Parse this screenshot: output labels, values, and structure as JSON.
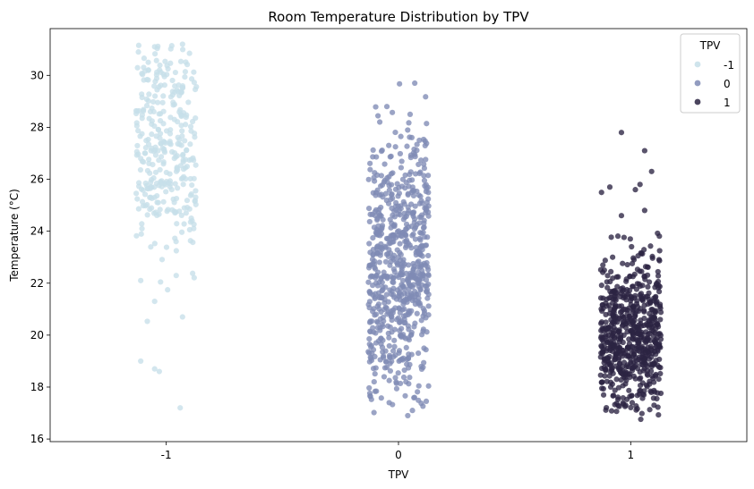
{
  "chart_data": {
    "type": "scatter",
    "subtype": "strip",
    "title": "Room Temperature Distribution by TPV",
    "xlabel": "TPV",
    "ylabel": "Temperature (°C)",
    "categories": [
      "-1",
      "0",
      "1"
    ],
    "ylim": [
      15.9,
      31.8
    ],
    "yticks": [
      16,
      18,
      20,
      22,
      24,
      26,
      28,
      30
    ],
    "grid": false,
    "legend": {
      "title": "TPV",
      "placement": "top-right"
    },
    "series": [
      {
        "name": "-1",
        "category": "-1",
        "color": "#c7dfe9",
        "count": 330,
        "summary": {
          "min": 17.2,
          "max": 31.2,
          "center": 27.3,
          "spread": 2.1
        },
        "notable_points": [
          {
            "x": -0.05,
            "y": 31.1
          },
          {
            "x": 0.07,
            "y": 31.2
          },
          {
            "x": -0.12,
            "y": 30.9
          },
          {
            "x": -0.11,
            "y": 22.1
          },
          {
            "x": -0.05,
            "y": 21.3
          },
          {
            "x": 0.07,
            "y": 20.7
          },
          {
            "x": -0.11,
            "y": 19.0
          },
          {
            "x": -0.05,
            "y": 18.7
          },
          {
            "x": -0.03,
            "y": 18.6
          },
          {
            "x": 0.06,
            "y": 17.2
          }
        ]
      },
      {
        "name": "0",
        "category": "0",
        "color": "#7f8bb5",
        "count": 700,
        "summary": {
          "min": 16.9,
          "max": 29.7,
          "center": 22.6,
          "spread": 2.7
        },
        "notable_points": [
          {
            "x": 0.07,
            "y": 29.7
          },
          {
            "x": -0.05,
            "y": 28.8
          },
          {
            "x": 0.05,
            "y": 28.5
          },
          {
            "x": -0.04,
            "y": 17.4
          },
          {
            "x": 0.06,
            "y": 17.1
          },
          {
            "x": 0.04,
            "y": 16.9
          }
        ]
      },
      {
        "name": "1",
        "category": "1",
        "color": "#2b2442",
        "count": 650,
        "summary": {
          "min": 16.7,
          "max": 27.8,
          "center": 19.9,
          "spread": 1.5
        },
        "notable_points": [
          {
            "x": -0.04,
            "y": 27.8
          },
          {
            "x": 0.06,
            "y": 27.1
          },
          {
            "x": 0.09,
            "y": 26.3
          },
          {
            "x": -0.09,
            "y": 25.7
          },
          {
            "x": 0.02,
            "y": 25.6
          },
          {
            "x": 0.04,
            "y": 25.8
          },
          {
            "x": -0.04,
            "y": 24.6
          },
          {
            "x": 0.06,
            "y": 24.8
          }
        ]
      }
    ]
  }
}
